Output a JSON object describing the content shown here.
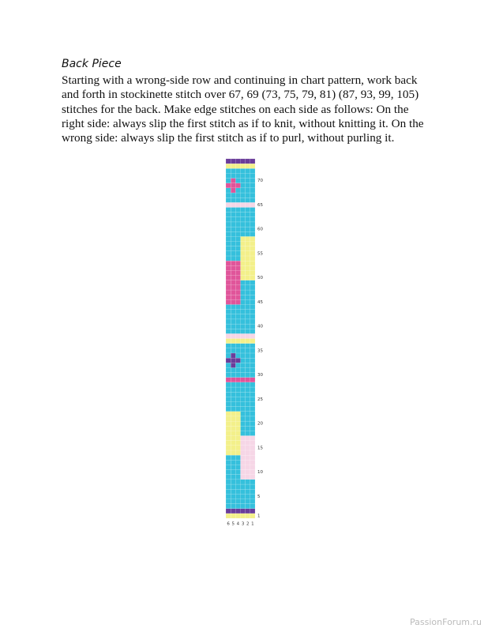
{
  "header": {
    "title": "Back Piece"
  },
  "body": {
    "lines": [
      "Starting with a wrong-side row and continuing in chart pattern, work back",
      "and forth in stockinette stitch over 67, 69 (73, 75, 79, 81) (87, 93, 99, 105)",
      "stitches for the back. Make edge stitches on each side as follows: On the",
      "right side: always slip the first stitch as if to knit, without knitting it. On the",
      "wrong side: always slip the first stitch as if to purl, without purling it."
    ]
  },
  "chart": {
    "row_labels": [
      1,
      5,
      10,
      15,
      20,
      25,
      30,
      35,
      40,
      45,
      50,
      55,
      60,
      65,
      70
    ],
    "column_labels": [
      6,
      5,
      4,
      3,
      2,
      1
    ]
  },
  "watermark": "PassionForum.ru"
}
